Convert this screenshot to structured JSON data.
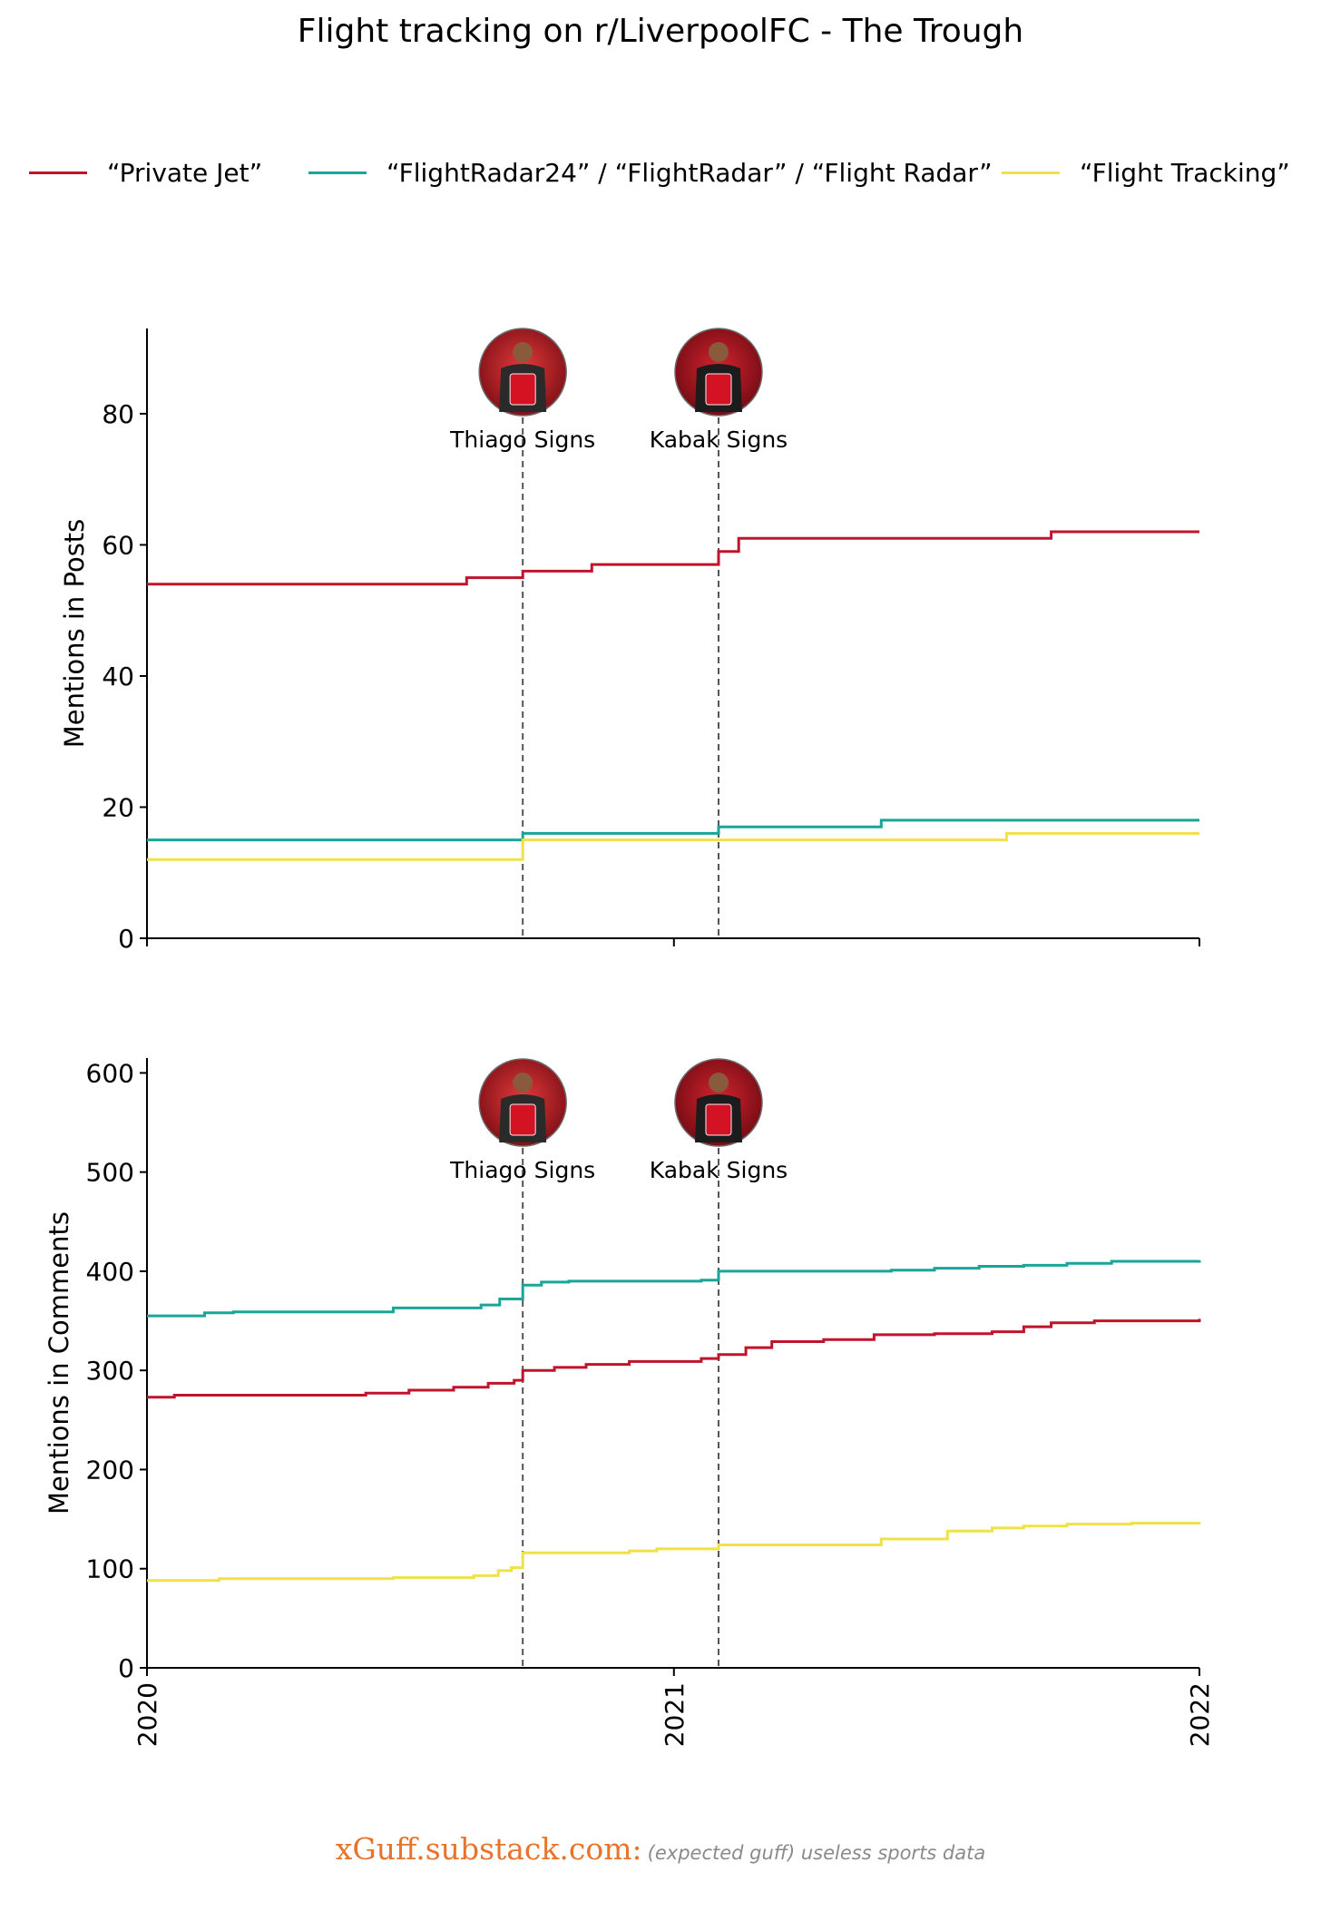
{
  "title": "Flight tracking on r/LiverpoolFC - The Trough",
  "colors": {
    "private_jet": "#c0142b",
    "flightradar": "#19a599",
    "flight_tracking": "#f0e14a"
  },
  "footer": {
    "brand": "xGuff.substack.com:",
    "tagline": "(expected guff) useless sports data"
  },
  "chart_data": [
    {
      "type": "line",
      "step": true,
      "ylabel": "Mentions in Posts",
      "xlim": [
        "2020-01-01",
        "2022-01-01"
      ],
      "ylim": [
        0,
        93
      ],
      "yticks": [
        0,
        20,
        40,
        60,
        80
      ],
      "xticks": [
        "2020",
        "2021",
        "2022"
      ],
      "grid": false,
      "legend_position": "top",
      "events": [
        {
          "date": "2020-09-18",
          "label": "Thiago Signs",
          "photo": "thiago-avatar"
        },
        {
          "date": "2021-02-01",
          "label": "Kabak Signs",
          "photo": "kabak-avatar"
        }
      ],
      "series": [
        {
          "name": "“Private Jet”",
          "color_key": "private_jet",
          "points": [
            [
              "2020-01-01",
              54
            ],
            [
              "2020-08-10",
              55
            ],
            [
              "2020-09-18",
              56
            ],
            [
              "2020-11-05",
              57
            ],
            [
              "2021-02-01",
              59
            ],
            [
              "2021-02-15",
              61
            ],
            [
              "2021-09-20",
              62
            ],
            [
              "2022-01-01",
              62
            ]
          ]
        },
        {
          "name": "“FlightRadar24” / “FlightRadar” / “Flight Radar”",
          "color_key": "flightradar",
          "points": [
            [
              "2020-01-01",
              15
            ],
            [
              "2020-09-18",
              16
            ],
            [
              "2021-02-01",
              17
            ],
            [
              "2021-05-25",
              18
            ],
            [
              "2022-01-01",
              18
            ]
          ]
        },
        {
          "name": "“Flight Tracking”",
          "color_key": "flight_tracking",
          "points": [
            [
              "2020-01-01",
              12
            ],
            [
              "2020-09-18",
              15
            ],
            [
              "2021-08-20",
              16
            ],
            [
              "2022-01-01",
              16
            ]
          ]
        }
      ]
    },
    {
      "type": "line",
      "step": true,
      "ylabel": "Mentions in Comments",
      "xlim": [
        "2020-01-01",
        "2022-01-01"
      ],
      "ylim": [
        0,
        615
      ],
      "yticks": [
        0,
        100,
        200,
        300,
        400,
        500,
        600
      ],
      "xticks": [
        "2020",
        "2021",
        "2022"
      ],
      "grid": false,
      "events": [
        {
          "date": "2020-09-18",
          "label": "Thiago Signs",
          "photo": "thiago-avatar"
        },
        {
          "date": "2021-02-01",
          "label": "Kabak Signs",
          "photo": "kabak-avatar"
        }
      ],
      "series": [
        {
          "name": "“Private Jet”",
          "color_key": "private_jet",
          "points": [
            [
              "2020-01-01",
              273
            ],
            [
              "2020-01-20",
              275
            ],
            [
              "2020-06-01",
              277
            ],
            [
              "2020-07-01",
              280
            ],
            [
              "2020-08-01",
              283
            ],
            [
              "2020-08-25",
              287
            ],
            [
              "2020-09-12",
              290
            ],
            [
              "2020-09-18",
              300
            ],
            [
              "2020-10-10",
              303
            ],
            [
              "2020-11-01",
              306
            ],
            [
              "2020-12-01",
              309
            ],
            [
              "2021-01-20",
              312
            ],
            [
              "2021-02-01",
              316
            ],
            [
              "2021-02-20",
              323
            ],
            [
              "2021-03-10",
              329
            ],
            [
              "2021-04-15",
              331
            ],
            [
              "2021-05-20",
              336
            ],
            [
              "2021-07-01",
              337
            ],
            [
              "2021-08-10",
              339
            ],
            [
              "2021-09-01",
              344
            ],
            [
              "2021-09-20",
              348
            ],
            [
              "2021-10-20",
              350
            ],
            [
              "2022-01-01",
              352
            ]
          ]
        },
        {
          "name": "“FlightRadar24” / “FlightRadar” / “Flight Radar”",
          "color_key": "flightradar",
          "points": [
            [
              "2020-01-01",
              355
            ],
            [
              "2020-02-10",
              358
            ],
            [
              "2020-03-01",
              359
            ],
            [
              "2020-06-20",
              363
            ],
            [
              "2020-08-20",
              366
            ],
            [
              "2020-09-02",
              372
            ],
            [
              "2020-09-18",
              386
            ],
            [
              "2020-10-01",
              389
            ],
            [
              "2020-10-20",
              390
            ],
            [
              "2021-01-20",
              391
            ],
            [
              "2021-02-01",
              400
            ],
            [
              "2021-06-01",
              401
            ],
            [
              "2021-07-01",
              403
            ],
            [
              "2021-08-01",
              405
            ],
            [
              "2021-09-01",
              406
            ],
            [
              "2021-10-01",
              408
            ],
            [
              "2021-11-01",
              410
            ],
            [
              "2022-01-01",
              411
            ]
          ]
        },
        {
          "name": "“Flight Tracking”",
          "color_key": "flight_tracking",
          "points": [
            [
              "2020-01-01",
              88
            ],
            [
              "2020-02-20",
              90
            ],
            [
              "2020-06-20",
              91
            ],
            [
              "2020-08-15",
              93
            ],
            [
              "2020-09-01",
              98
            ],
            [
              "2020-09-10",
              101
            ],
            [
              "2020-09-18",
              116
            ],
            [
              "2020-12-01",
              118
            ],
            [
              "2020-12-20",
              120
            ],
            [
              "2021-02-01",
              124
            ],
            [
              "2021-05-25",
              130
            ],
            [
              "2021-07-10",
              138
            ],
            [
              "2021-08-10",
              141
            ],
            [
              "2021-09-01",
              143
            ],
            [
              "2021-10-01",
              145
            ],
            [
              "2021-11-15",
              146
            ],
            [
              "2022-01-01",
              147
            ]
          ]
        }
      ]
    }
  ]
}
